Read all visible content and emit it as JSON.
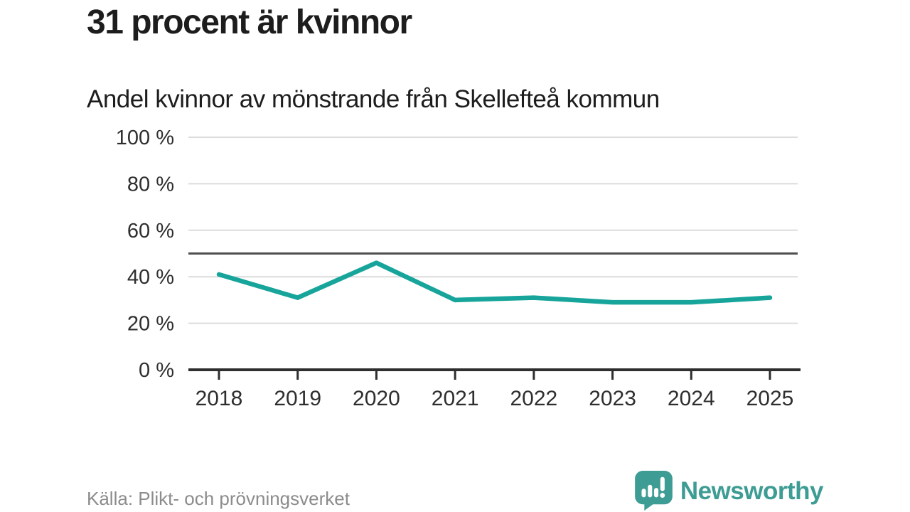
{
  "header": {
    "title": "31 procent är kvinnor",
    "subtitle": "Andel kvinnor av mönstrande från Skellefteå kommun"
  },
  "footer": {
    "source": "Källa: Plikt- och prövningsverket",
    "brand": "Newsworthy"
  },
  "colors": {
    "line": "#17a59b",
    "brand": "#3d9c93",
    "grid": "#dcdcdc",
    "axis": "#2e2e2e",
    "reference": "#4f4f4f",
    "tick_label": "#2e2e2e"
  },
  "chart_data": {
    "type": "line",
    "title": "31 procent är kvinnor",
    "subtitle": "Andel kvinnor av mönstrande från Skellefteå kommun",
    "categories": [
      "2018",
      "2019",
      "2020",
      "2021",
      "2022",
      "2023",
      "2024",
      "2025"
    ],
    "series": [
      {
        "name": "Andel kvinnor av mönstrande",
        "values": [
          41,
          31,
          46,
          30,
          31,
          29,
          29,
          31
        ]
      }
    ],
    "xlabel": "",
    "ylabel": "",
    "ylim": [
      0,
      100
    ],
    "yticks": [
      0,
      20,
      40,
      60,
      80,
      100
    ],
    "ytick_format": "{v} %",
    "reference_line": 50,
    "grid": true,
    "legend": "none"
  }
}
